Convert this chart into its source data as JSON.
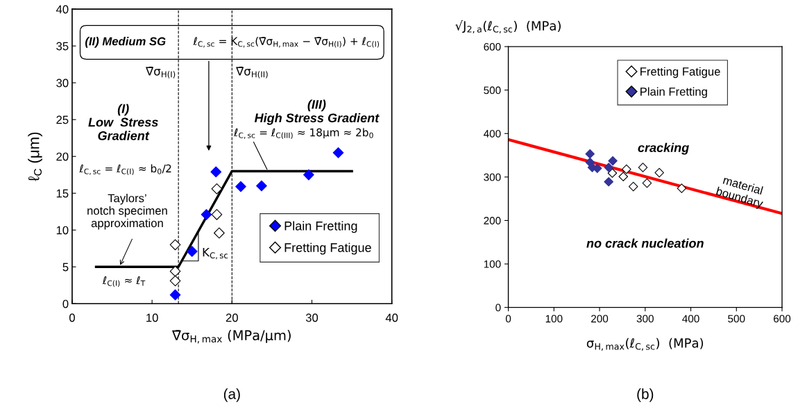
{
  "chart_data": [
    {
      "type": "scatter",
      "xlabel": "∇̄σ$_{H,max}$ (MPa/μm)",
      "ylabel": "ℓ$_{C}$ (μm)",
      "xlim": [
        0,
        40
      ],
      "ylim": [
        0,
        40
      ],
      "xticks": [
        0,
        10,
        20,
        30,
        40
      ],
      "yticks": [
        0,
        5,
        10,
        15,
        20,
        25,
        30,
        35,
        40
      ],
      "grid": false,
      "legend": "bottom right",
      "marker": "diamond",
      "series": [
        {
          "name": "Plain Fretting",
          "color": "#0000ff",
          "x": [
            12.9,
            15.0,
            16.8,
            18.0,
            21.1,
            23.7,
            29.6,
            33.3
          ],
          "values": [
            1.2,
            7.1,
            12.1,
            17.9,
            15.9,
            16.0,
            17.5,
            20.5
          ]
        },
        {
          "name": "Fretting Fatigue",
          "color": "#ffffff",
          "x": [
            12.9,
            12.9,
            12.9,
            18.1,
            18.1,
            18.4
          ],
          "values": [
            8.0,
            4.4,
            3.1,
            15.6,
            12.1,
            9.6
          ]
        },
        {
          "type": "line",
          "marker": "none",
          "color": "#000000",
          "x": [
            3,
            13.3,
            20,
            35
          ],
          "values": [
            5,
            5,
            18,
            18
          ]
        }
      ],
      "ref_lines": [
        {
          "axis": "x",
          "value": 13.3,
          "label": "∇̄σ$_{H(I)}$",
          "line_style": "dashed"
        },
        {
          "axis": "x",
          "value": 20,
          "label": "∇̄σ$_{H(II)}$",
          "line_style": "dashed"
        }
      ],
      "annotations": [
        "(II) Medium SG",
        "ℓ$_{C,sc}$ = K$_{C,sc}$(∇̄σ$_{H,max}$ − ∇̄σ$_{H(I)}$) + ℓ$_{C(I)}$",
        "(I)\nLow  Stress\nGradient",
        "(III)\nHigh Stress Gradient",
        {
          "text": "ℓ$_{C,sc}$ = ℓ$_{C(III)}$ ≈ 18μm ≈ 2b$_{0}$",
          "x": 24.5,
          "y": 18
        },
        "ℓ$_{C,sc}$ = ℓ$_{C(I)}$ ≈ b$_{0}$/2",
        {
          "text": "Taylors’\nnotch specimen\napproximation",
          "x": 5.9,
          "y": 5
        },
        "ℓ$_{C(I)}$ ≈ ℓ$_{T}$",
        "K$_{C,sc}$",
        "(a)"
      ]
    },
    {
      "type": "scatter",
      "xlabel": "σ$_{H,max}$(ℓ$_{C,sc}$)  (MPa)",
      "ylabel": "√J$_{2,a}$(ℓ$_{C,sc}$)  (MPa)",
      "xlim": [
        0,
        600
      ],
      "ylim": [
        0,
        600
      ],
      "xticks": [
        0,
        100,
        200,
        300,
        400,
        500,
        600
      ],
      "yticks": [
        0,
        100,
        200,
        300,
        400,
        500,
        600
      ],
      "grid": false,
      "legend": "top",
      "marker": "diamond",
      "series": [
        {
          "name": "Fretting Fatigue",
          "color": "#ffffff",
          "x": [
            228,
            252,
            259,
            295,
            274,
            304,
            331,
            380
          ],
          "values": [
            309,
            301,
            318,
            322,
            278,
            286,
            310,
            274
          ]
        },
        {
          "name": "Plain Fretting",
          "color": "#333399",
          "x": [
            179,
            179,
            184,
            195,
            220,
            229,
            220
          ],
          "values": [
            353,
            334,
            322,
            320,
            322,
            337,
            289
          ]
        },
        {
          "type": "line",
          "marker": "none",
          "color": "#ff0000",
          "x": [
            0,
            600
          ],
          "values": [
            386,
            216
          ]
        }
      ],
      "annotations": [
        "cracking",
        "no crack nucleation",
        "material\nboundary",
        "(b)"
      ]
    }
  ]
}
